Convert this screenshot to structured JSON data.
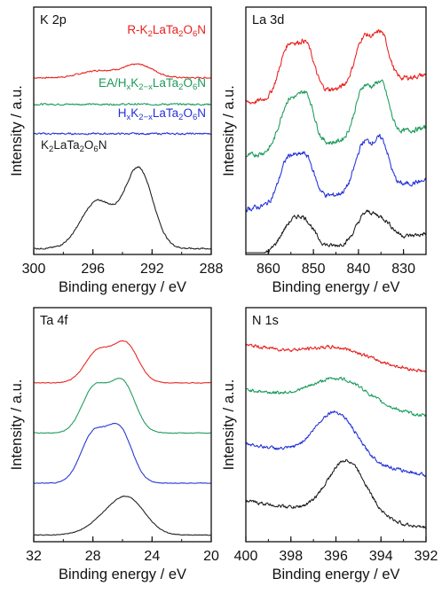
{
  "colors": {
    "red": "#e8201c",
    "green": "#1a9a5a",
    "blue": "#2230d8",
    "black": "#1a1a1a"
  },
  "chart_data": [
    {
      "type": "line",
      "panel_label": "K 2p",
      "xlabel": "Binding energy / eV",
      "ylabel": "Intensity / a.u.",
      "xlim": [
        300,
        288
      ],
      "x_reversed": true,
      "xticks": [
        "300",
        "296",
        "292",
        "288"
      ],
      "grid": false,
      "legend": "inline labels",
      "series": [
        {
          "name": "R-K2LaTa2O6N",
          "label_parts": [
            [
              "R-K",
              ""
            ],
            [
              "2",
              "sub"
            ],
            [
              "LaTa",
              ""
            ],
            [
              "2",
              "sub"
            ],
            [
              "O",
              ""
            ],
            [
              "6",
              "sub"
            ],
            [
              "N",
              ""
            ]
          ],
          "color": "#e8201c",
          "offset": 3.0,
          "noise": 0.01,
          "peaks": [
            [
              295.6,
              1.2,
              0.12
            ],
            [
              292.9,
              1.0,
              0.22
            ]
          ]
        },
        {
          "name": "EA/HxK2-xLaTa2O6N",
          "label_parts": [
            [
              "EA/H",
              ""
            ],
            [
              "x",
              "sub"
            ],
            [
              "K",
              ""
            ],
            [
              "2−x",
              "sub"
            ],
            [
              "LaTa",
              ""
            ],
            [
              "2",
              "sub"
            ],
            [
              "O",
              ""
            ],
            [
              "6",
              "sub"
            ],
            [
              "N",
              ""
            ]
          ],
          "color": "#1a9a5a",
          "offset": 2.55,
          "noise": 0.012,
          "peaks": []
        },
        {
          "name": "HxK2-xLaTa2O6N",
          "label_parts": [
            [
              "H",
              ""
            ],
            [
              "x",
              "sub"
            ],
            [
              "K",
              ""
            ],
            [
              "2−x",
              "sub"
            ],
            [
              "LaTa",
              ""
            ],
            [
              "2",
              "sub"
            ],
            [
              "O",
              ""
            ],
            [
              "6",
              "sub"
            ],
            [
              "N",
              ""
            ]
          ],
          "color": "#2230d8",
          "offset": 2.05,
          "noise": 0.012,
          "peaks": []
        },
        {
          "name": "K2LaTa2O6N",
          "label_parts": [
            [
              "K",
              ""
            ],
            [
              "2",
              "sub"
            ],
            [
              "LaTa",
              ""
            ],
            [
              "2",
              "sub"
            ],
            [
              "O",
              ""
            ],
            [
              "6",
              "sub"
            ],
            [
              "N",
              ""
            ]
          ],
          "color": "#1a1a1a",
          "offset": 0.1,
          "noise": 0.01,
          "peaks": [
            [
              295.7,
              1.1,
              0.8
            ],
            [
              292.9,
              0.95,
              1.35
            ]
          ]
        }
      ]
    },
    {
      "type": "line",
      "panel_label": "La 3d",
      "xlabel": "Binding energy / eV",
      "ylabel": "Intensity / a.u.",
      "xlim": [
        865,
        825
      ],
      "x_reversed": true,
      "xticks": [
        "860",
        "850",
        "840",
        "830"
      ],
      "grid": false,
      "legend": "none",
      "series": [
        {
          "color": "#e8201c",
          "offset": 3.05,
          "base_slope": -0.012,
          "noise": 0.035,
          "peaks": [
            [
              855.5,
              2.0,
              0.85
            ],
            [
              851.5,
              1.7,
              0.75
            ],
            [
              838.8,
              1.9,
              0.8
            ],
            [
              834.8,
              1.6,
              0.75
            ]
          ]
        },
        {
          "color": "#1a9a5a",
          "offset": 2.15,
          "base_slope": -0.012,
          "noise": 0.035,
          "peaks": [
            [
              855.5,
              2.0,
              0.8
            ],
            [
              851.5,
              1.7,
              0.8
            ],
            [
              838.8,
              1.9,
              0.85
            ],
            [
              834.8,
              1.6,
              0.8
            ]
          ]
        },
        {
          "color": "#2230d8",
          "offset": 1.25,
          "base_slope": -0.012,
          "noise": 0.035,
          "peaks": [
            [
              855.5,
              2.0,
              0.75
            ],
            [
              851.5,
              1.7,
              0.65
            ],
            [
              838.8,
              1.9,
              0.8
            ],
            [
              834.8,
              1.6,
              0.75
            ]
          ]
        },
        {
          "color": "#1a1a1a",
          "offset": 0.35,
          "base_slope": -0.01,
          "noise": 0.03,
          "peaks": [
            [
              855.0,
              2.4,
              0.45
            ],
            [
              851.5,
              2.0,
              0.35
            ],
            [
              838.5,
              2.0,
              0.45
            ],
            [
              834.5,
              2.0,
              0.3
            ]
          ]
        }
      ]
    },
    {
      "type": "line",
      "panel_label": "Ta 4f",
      "xlabel": "Binding energy / eV",
      "ylabel": "Intensity / a.u.",
      "xlim": [
        32,
        20
      ],
      "x_reversed": true,
      "xticks": [
        "32",
        "28",
        "24",
        "20"
      ],
      "grid": false,
      "legend": "none",
      "series": [
        {
          "color": "#e8201c",
          "offset": 2.85,
          "noise": 0.005,
          "peaks": [
            [
              27.7,
              0.85,
              0.55
            ],
            [
              25.8,
              0.85,
              0.7
            ]
          ]
        },
        {
          "color": "#1a9a5a",
          "offset": 1.95,
          "noise": 0.005,
          "peaks": [
            [
              27.9,
              0.85,
              0.8
            ],
            [
              26.0,
              0.85,
              0.9
            ]
          ]
        },
        {
          "color": "#2230d8",
          "offset": 1.05,
          "noise": 0.005,
          "peaks": [
            [
              28.0,
              0.85,
              0.85
            ],
            [
              26.2,
              0.85,
              0.95
            ]
          ]
        },
        {
          "color": "#1a1a1a",
          "offset": 0.12,
          "noise": 0.005,
          "peaks": [
            [
              26.7,
              1.3,
              0.35
            ],
            [
              25.4,
              1.1,
              0.45
            ]
          ]
        }
      ]
    },
    {
      "type": "line",
      "panel_label": "N 1s",
      "xlabel": "Binding energy / eV",
      "ylabel": "Intensity / a.u.",
      "xlim": [
        400,
        392
      ],
      "x_reversed": true,
      "xticks": [
        "400",
        "398",
        "396",
        "394",
        "392"
      ],
      "grid": false,
      "legend": "none",
      "series": [
        {
          "color": "#e8201c",
          "offset": 3.05,
          "base_slope": 0.06,
          "noise": 0.025,
          "peaks": [
            [
              395.8,
              1.2,
              0.2
            ]
          ]
        },
        {
          "color": "#1a9a5a",
          "offset": 2.25,
          "base_slope": 0.06,
          "noise": 0.025,
          "peaks": [
            [
              395.8,
              1.2,
              0.45
            ]
          ]
        },
        {
          "color": "#2230d8",
          "offset": 1.2,
          "base_slope": 0.07,
          "noise": 0.025,
          "peaks": [
            [
              396.0,
              0.9,
              0.85
            ]
          ]
        },
        {
          "color": "#1a1a1a",
          "offset": 0.25,
          "base_slope": 0.06,
          "noise": 0.025,
          "peaks": [
            [
              395.5,
              0.85,
              1.0
            ]
          ]
        }
      ]
    }
  ]
}
